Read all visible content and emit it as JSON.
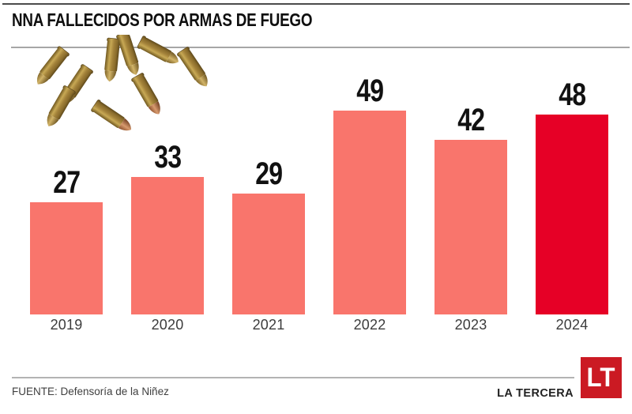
{
  "title": "NNA FALLECIDOS POR ARMAS DE FUEGO",
  "footer": {
    "source": "FUENTE: Defensoría de la Niñez",
    "brand": "LA TERCERA",
    "logo_text": "LT"
  },
  "colors": {
    "bar": "#F9756C",
    "bar_highlight": "#E60026",
    "logo_red": "#CB1A23",
    "title_text": "#0F0F0F",
    "top_rule": "#4B4B4B",
    "divider": "#A6A6A6"
  },
  "decor": {
    "image": "bullet-cartridges-photo"
  },
  "chart_data": {
    "type": "bar",
    "categories": [
      "2019",
      "2020",
      "2021",
      "2022",
      "2023",
      "2024"
    ],
    "values": [
      27,
      33,
      29,
      49,
      42,
      48
    ],
    "title": "NNA FALLECIDOS POR ARMAS DE FUEGO",
    "xlabel": "",
    "ylabel": "",
    "ylim": [
      0,
      49
    ],
    "grid": false,
    "legend": false,
    "value_labels": true,
    "highlight_category": "2024"
  }
}
